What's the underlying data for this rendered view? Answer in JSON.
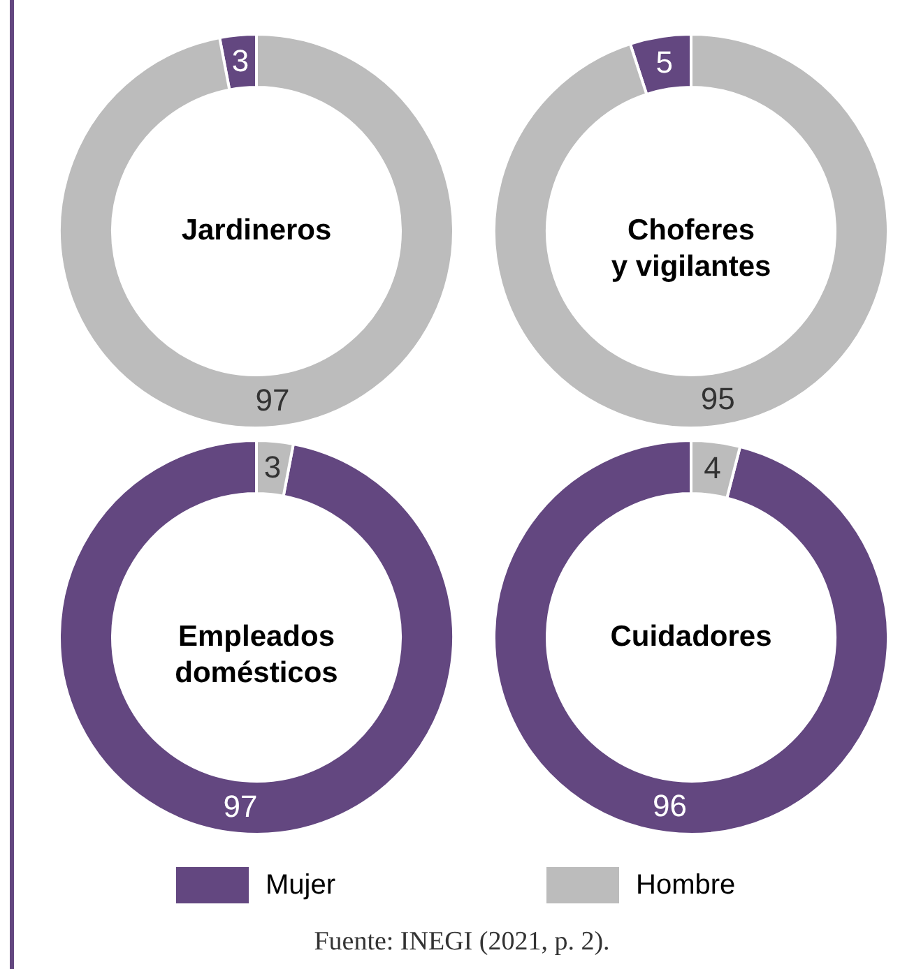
{
  "chart_data": [
    {
      "type": "donut",
      "title": "Jardineros",
      "categories": [
        "Mujer",
        "Hombre"
      ],
      "values": [
        3,
        97
      ],
      "colors": [
        "#634780",
        "#bcbcbc"
      ],
      "data_labels": true,
      "legend": "bottom"
    },
    {
      "type": "donut",
      "title": "Choferes\ny vigilantes",
      "values": [
        5,
        95
      ],
      "colors": [
        "#634780",
        "#bcbcbc"
      ],
      "data_labels": true
    },
    {
      "type": "donut",
      "title": "Empleados\ndomésticos",
      "values": [
        97,
        3
      ],
      "colors": [
        "#634780",
        "#bcbcbc"
      ],
      "data_labels": true
    },
    {
      "type": "donut",
      "title": "Cuidadores",
      "values": [
        96,
        4
      ],
      "colors": [
        "#634780",
        "#bcbcbc"
      ],
      "data_labels": true,
      "annotations": [
        "Fuente: INEGI (2021, p. 2)."
      ]
    }
  ]
}
